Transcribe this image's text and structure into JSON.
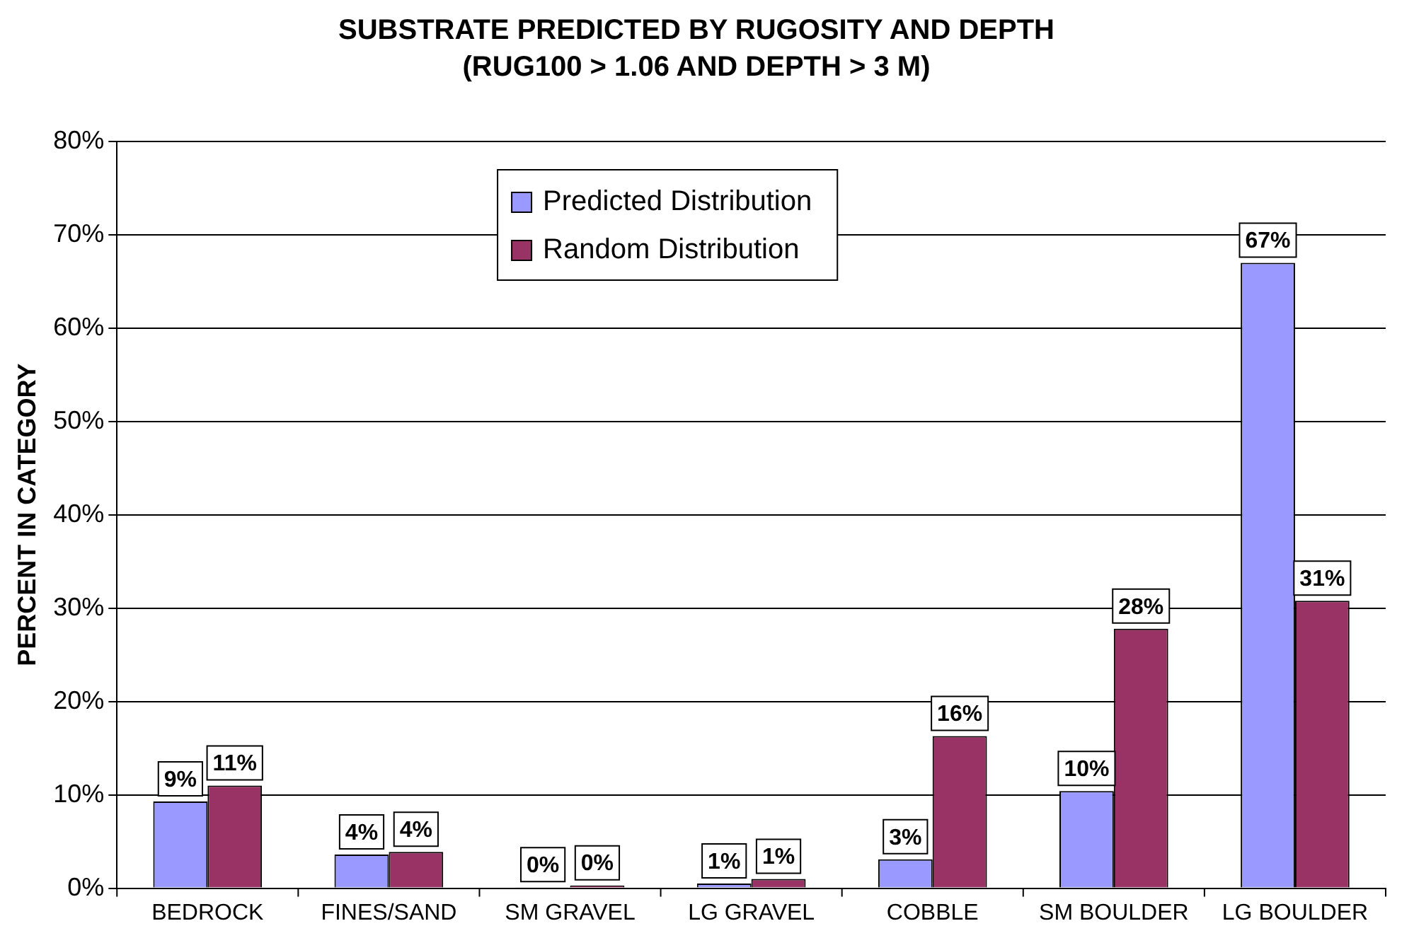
{
  "chart_data": {
    "type": "bar",
    "title": "SUBSTRATE PREDICTED BY RUGOSITY AND DEPTH",
    "subtitle": "(RUG100 > 1.06 AND DEPTH > 3 M)",
    "ylabel": "PERCENT IN CATEGORY",
    "categories": [
      "BEDROCK",
      "FINES/SAND",
      "SM GRAVEL",
      "LG GRAVEL",
      "COBBLE",
      "SM BOULDER",
      "LG BOULDER"
    ],
    "series": [
      {
        "name": "Predicted Distribution",
        "color": "#9999ff",
        "values": [
          9.3,
          3.6,
          0.1,
          0.5,
          3.1,
          10.4,
          67
        ],
        "value_labels": [
          "9%",
          "4%",
          "0%",
          "1%",
          "3%",
          "10%",
          "67%"
        ]
      },
      {
        "name": "Random Distribution",
        "color": "#993366",
        "values": [
          11,
          3.9,
          0.3,
          1,
          16.3,
          27.8,
          30.8
        ],
        "value_labels": [
          "11%",
          "4%",
          "0%",
          "1%",
          "16%",
          "28%",
          "31%"
        ]
      }
    ],
    "ylim": [
      0,
      80
    ],
    "yticks": [
      {
        "value": 0,
        "label": "0%"
      },
      {
        "value": 10,
        "label": "10%"
      },
      {
        "value": 20,
        "label": "20%"
      },
      {
        "value": 30,
        "label": "30%"
      },
      {
        "value": 40,
        "label": "40%"
      },
      {
        "value": 50,
        "label": "50%"
      },
      {
        "value": 60,
        "label": "60%"
      },
      {
        "value": 70,
        "label": "70%"
      },
      {
        "value": 80,
        "label": "80%"
      }
    ],
    "grid": "y",
    "legend": "top"
  }
}
